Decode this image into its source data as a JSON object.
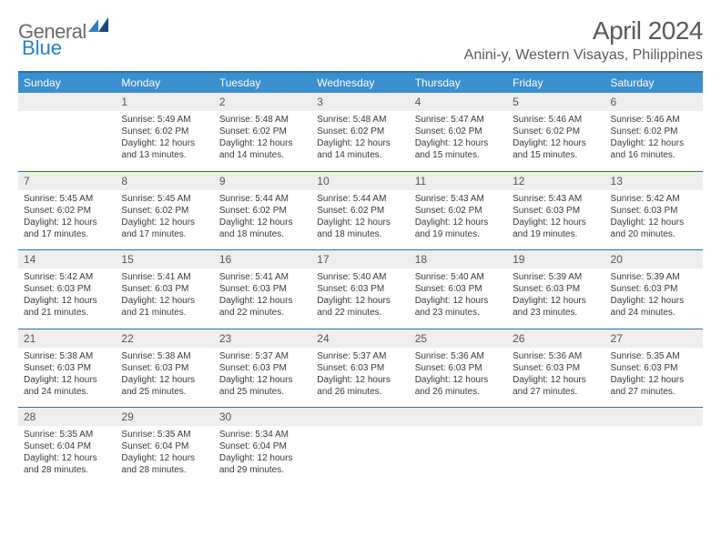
{
  "logo": {
    "text1": "General",
    "text2": "Blue"
  },
  "title": "April 2024",
  "location": "Anini-y, Western Visayas, Philippines",
  "colors": {
    "header_bg": "#3a8fce",
    "header_border": "#2f6fa8",
    "daynum_bg": "#eeeeee",
    "text": "#3a3a3a",
    "title_text": "#5a5a5a",
    "logo_gray": "#6a6a6a",
    "logo_blue": "#2f7fbf"
  },
  "day_names": [
    "Sunday",
    "Monday",
    "Tuesday",
    "Wednesday",
    "Thursday",
    "Friday",
    "Saturday"
  ],
  "weeks": [
    {
      "nums": [
        "",
        "1",
        "2",
        "3",
        "4",
        "5",
        "6"
      ],
      "cells": [
        {
          "sunrise": "",
          "sunset": "",
          "daylight": ""
        },
        {
          "sunrise": "Sunrise: 5:49 AM",
          "sunset": "Sunset: 6:02 PM",
          "daylight": "Daylight: 12 hours and 13 minutes."
        },
        {
          "sunrise": "Sunrise: 5:48 AM",
          "sunset": "Sunset: 6:02 PM",
          "daylight": "Daylight: 12 hours and 14 minutes."
        },
        {
          "sunrise": "Sunrise: 5:48 AM",
          "sunset": "Sunset: 6:02 PM",
          "daylight": "Daylight: 12 hours and 14 minutes."
        },
        {
          "sunrise": "Sunrise: 5:47 AM",
          "sunset": "Sunset: 6:02 PM",
          "daylight": "Daylight: 12 hours and 15 minutes."
        },
        {
          "sunrise": "Sunrise: 5:46 AM",
          "sunset": "Sunset: 6:02 PM",
          "daylight": "Daylight: 12 hours and 15 minutes."
        },
        {
          "sunrise": "Sunrise: 5:46 AM",
          "sunset": "Sunset: 6:02 PM",
          "daylight": "Daylight: 12 hours and 16 minutes."
        }
      ]
    },
    {
      "nums": [
        "7",
        "8",
        "9",
        "10",
        "11",
        "12",
        "13"
      ],
      "cells": [
        {
          "sunrise": "Sunrise: 5:45 AM",
          "sunset": "Sunset: 6:02 PM",
          "daylight": "Daylight: 12 hours and 17 minutes."
        },
        {
          "sunrise": "Sunrise: 5:45 AM",
          "sunset": "Sunset: 6:02 PM",
          "daylight": "Daylight: 12 hours and 17 minutes."
        },
        {
          "sunrise": "Sunrise: 5:44 AM",
          "sunset": "Sunset: 6:02 PM",
          "daylight": "Daylight: 12 hours and 18 minutes."
        },
        {
          "sunrise": "Sunrise: 5:44 AM",
          "sunset": "Sunset: 6:02 PM",
          "daylight": "Daylight: 12 hours and 18 minutes."
        },
        {
          "sunrise": "Sunrise: 5:43 AM",
          "sunset": "Sunset: 6:02 PM",
          "daylight": "Daylight: 12 hours and 19 minutes."
        },
        {
          "sunrise": "Sunrise: 5:43 AM",
          "sunset": "Sunset: 6:03 PM",
          "daylight": "Daylight: 12 hours and 19 minutes."
        },
        {
          "sunrise": "Sunrise: 5:42 AM",
          "sunset": "Sunset: 6:03 PM",
          "daylight": "Daylight: 12 hours and 20 minutes."
        }
      ]
    },
    {
      "nums": [
        "14",
        "15",
        "16",
        "17",
        "18",
        "19",
        "20"
      ],
      "cells": [
        {
          "sunrise": "Sunrise: 5:42 AM",
          "sunset": "Sunset: 6:03 PM",
          "daylight": "Daylight: 12 hours and 21 minutes."
        },
        {
          "sunrise": "Sunrise: 5:41 AM",
          "sunset": "Sunset: 6:03 PM",
          "daylight": "Daylight: 12 hours and 21 minutes."
        },
        {
          "sunrise": "Sunrise: 5:41 AM",
          "sunset": "Sunset: 6:03 PM",
          "daylight": "Daylight: 12 hours and 22 minutes."
        },
        {
          "sunrise": "Sunrise: 5:40 AM",
          "sunset": "Sunset: 6:03 PM",
          "daylight": "Daylight: 12 hours and 22 minutes."
        },
        {
          "sunrise": "Sunrise: 5:40 AM",
          "sunset": "Sunset: 6:03 PM",
          "daylight": "Daylight: 12 hours and 23 minutes."
        },
        {
          "sunrise": "Sunrise: 5:39 AM",
          "sunset": "Sunset: 6:03 PM",
          "daylight": "Daylight: 12 hours and 23 minutes."
        },
        {
          "sunrise": "Sunrise: 5:39 AM",
          "sunset": "Sunset: 6:03 PM",
          "daylight": "Daylight: 12 hours and 24 minutes."
        }
      ]
    },
    {
      "nums": [
        "21",
        "22",
        "23",
        "24",
        "25",
        "26",
        "27"
      ],
      "cells": [
        {
          "sunrise": "Sunrise: 5:38 AM",
          "sunset": "Sunset: 6:03 PM",
          "daylight": "Daylight: 12 hours and 24 minutes."
        },
        {
          "sunrise": "Sunrise: 5:38 AM",
          "sunset": "Sunset: 6:03 PM",
          "daylight": "Daylight: 12 hours and 25 minutes."
        },
        {
          "sunrise": "Sunrise: 5:37 AM",
          "sunset": "Sunset: 6:03 PM",
          "daylight": "Daylight: 12 hours and 25 minutes."
        },
        {
          "sunrise": "Sunrise: 5:37 AM",
          "sunset": "Sunset: 6:03 PM",
          "daylight": "Daylight: 12 hours and 26 minutes."
        },
        {
          "sunrise": "Sunrise: 5:36 AM",
          "sunset": "Sunset: 6:03 PM",
          "daylight": "Daylight: 12 hours and 26 minutes."
        },
        {
          "sunrise": "Sunrise: 5:36 AM",
          "sunset": "Sunset: 6:03 PM",
          "daylight": "Daylight: 12 hours and 27 minutes."
        },
        {
          "sunrise": "Sunrise: 5:35 AM",
          "sunset": "Sunset: 6:03 PM",
          "daylight": "Daylight: 12 hours and 27 minutes."
        }
      ]
    },
    {
      "nums": [
        "28",
        "29",
        "30",
        "",
        "",
        "",
        ""
      ],
      "cells": [
        {
          "sunrise": "Sunrise: 5:35 AM",
          "sunset": "Sunset: 6:04 PM",
          "daylight": "Daylight: 12 hours and 28 minutes."
        },
        {
          "sunrise": "Sunrise: 5:35 AM",
          "sunset": "Sunset: 6:04 PM",
          "daylight": "Daylight: 12 hours and 28 minutes."
        },
        {
          "sunrise": "Sunrise: 5:34 AM",
          "sunset": "Sunset: 6:04 PM",
          "daylight": "Daylight: 12 hours and 29 minutes."
        },
        {
          "sunrise": "",
          "sunset": "",
          "daylight": ""
        },
        {
          "sunrise": "",
          "sunset": "",
          "daylight": ""
        },
        {
          "sunrise": "",
          "sunset": "",
          "daylight": ""
        },
        {
          "sunrise": "",
          "sunset": "",
          "daylight": ""
        }
      ]
    }
  ]
}
